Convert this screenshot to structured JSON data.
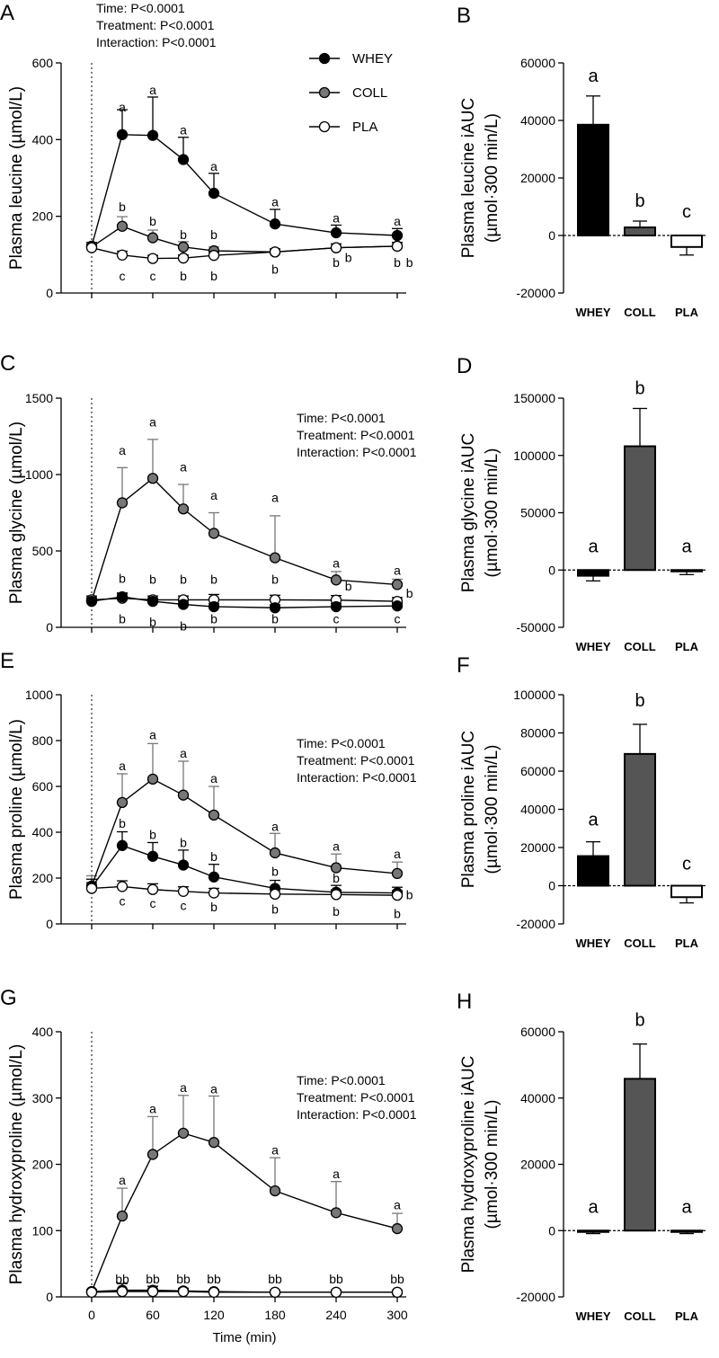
{
  "chart_data": [
    {
      "panel": "A",
      "type": "line",
      "ylabel": "Plasma leucine (µmol/L)",
      "xlabel": "",
      "ylim": [
        0,
        600
      ],
      "yticks": [
        0,
        200,
        400,
        600
      ],
      "xlim": [
        0,
        300
      ],
      "xticks": [
        0,
        60,
        120,
        180,
        240,
        300
      ],
      "show_xtick_labels": false,
      "stats": [
        "Time: P<0.0001",
        "Treatment: P<0.0001",
        "Interaction: P<0.0001"
      ],
      "legend": [
        {
          "name": "WHEY",
          "marker": "filled-black"
        },
        {
          "name": "COLL",
          "marker": "filled-gray"
        },
        {
          "name": "PLA",
          "marker": "open"
        }
      ],
      "x": [
        0,
        30,
        60,
        90,
        120,
        180,
        240,
        300
      ],
      "series": [
        {
          "name": "WHEY",
          "values": [
            122,
            413,
            411,
            348,
            260,
            180,
            157,
            150
          ],
          "err": [
            10,
            65,
            100,
            58,
            52,
            38,
            20,
            18
          ]
        },
        {
          "name": "COLL",
          "values": [
            120,
            174,
            144,
            120,
            110,
            107,
            118,
            122
          ],
          "err": [
            10,
            25,
            20,
            14,
            10,
            8,
            10,
            10
          ]
        },
        {
          "name": "PLA",
          "values": [
            118,
            99,
            90,
            91,
            98,
            107,
            118,
            122
          ],
          "err": [
            10,
            10,
            8,
            8,
            10,
            8,
            10,
            10
          ]
        }
      ],
      "annotations": [
        {
          "x": 30,
          "y": 485,
          "text": "a"
        },
        {
          "x": 60,
          "y": 530,
          "text": "a"
        },
        {
          "x": 90,
          "y": 425,
          "text": "a"
        },
        {
          "x": 120,
          "y": 330,
          "text": "a"
        },
        {
          "x": 180,
          "y": 238,
          "text": "a"
        },
        {
          "x": 240,
          "y": 196,
          "text": "a"
        },
        {
          "x": 300,
          "y": 187,
          "text": "a"
        },
        {
          "x": 30,
          "y": 225,
          "text": "b"
        },
        {
          "x": 60,
          "y": 187,
          "text": "b"
        },
        {
          "x": 90,
          "y": 152,
          "text": "b"
        },
        {
          "x": 120,
          "y": 152,
          "text": "b"
        },
        {
          "x": 30,
          "y": 45,
          "text": "c"
        },
        {
          "x": 60,
          "y": 45,
          "text": "c"
        },
        {
          "x": 90,
          "y": 45,
          "text": "b"
        },
        {
          "x": 120,
          "y": 45,
          "text": "b"
        },
        {
          "x": 180,
          "y": 62,
          "text": "b"
        },
        {
          "x": 240,
          "y": 80,
          "text": "b"
        },
        {
          "x": 252,
          "y": 92,
          "text": "b"
        },
        {
          "x": 300,
          "y": 80,
          "text": "b"
        },
        {
          "x": 312,
          "y": 80,
          "text": "b"
        }
      ]
    },
    {
      "panel": "B",
      "type": "bar",
      "ylabel": "Plasma leucine iAUC (µmol·300 min/L)",
      "ylim": [
        -20000,
        60000
      ],
      "yticks": [
        -20000,
        0,
        20000,
        40000,
        60000
      ],
      "categories": [
        "WHEY",
        "COLL",
        "PLA"
      ],
      "values": [
        38500,
        2800,
        -4000
      ],
      "err": [
        10000,
        2200,
        2800
      ],
      "colors": [
        "#000000",
        "#555555",
        "#ffffff"
      ],
      "letters": [
        "a",
        "b",
        "c"
      ]
    },
    {
      "panel": "C",
      "type": "line",
      "ylabel": "Plasma glycine (µmol/L)",
      "xlabel": "",
      "ylim": [
        0,
        1500
      ],
      "yticks": [
        0,
        500,
        1000,
        1500
      ],
      "xlim": [
        0,
        300
      ],
      "xticks": [
        0,
        60,
        120,
        180,
        240,
        300
      ],
      "show_xtick_labels": false,
      "stats": [
        "Time: P<0.0001",
        "Treatment: P<0.0001",
        "Interaction: P<0.0001"
      ],
      "x": [
        0,
        30,
        60,
        90,
        120,
        180,
        240,
        300
      ],
      "series": [
        {
          "name": "COLL",
          "values": [
            175,
            815,
            975,
            775,
            615,
            455,
            310,
            280
          ],
          "err": [
            20,
            230,
            255,
            160,
            135,
            275,
            55,
            35
          ]
        },
        {
          "name": "PLA",
          "values": [
            180,
            190,
            180,
            180,
            180,
            180,
            178,
            170
          ],
          "err": [
            25,
            30,
            25,
            25,
            35,
            30,
            30,
            25
          ]
        },
        {
          "name": "WHEY",
          "values": [
            170,
            200,
            170,
            150,
            135,
            128,
            135,
            140
          ],
          "err": [
            20,
            25,
            20,
            25,
            20,
            20,
            20,
            15
          ]
        }
      ],
      "annotations": [
        {
          "x": 30,
          "y": 1160,
          "text": "a"
        },
        {
          "x": 60,
          "y": 1345,
          "text": "a"
        },
        {
          "x": 90,
          "y": 1050,
          "text": "a"
        },
        {
          "x": 120,
          "y": 865,
          "text": "a"
        },
        {
          "x": 180,
          "y": 850,
          "text": "a"
        },
        {
          "x": 240,
          "y": 420,
          "text": "a"
        },
        {
          "x": 300,
          "y": 375,
          "text": "a"
        },
        {
          "x": 30,
          "y": 320,
          "text": "b"
        },
        {
          "x": 60,
          "y": 315,
          "text": "b"
        },
        {
          "x": 90,
          "y": 315,
          "text": "b"
        },
        {
          "x": 120,
          "y": 315,
          "text": "b"
        },
        {
          "x": 180,
          "y": 315,
          "text": "b"
        },
        {
          "x": 252,
          "y": 270,
          "text": "b"
        },
        {
          "x": 312,
          "y": 225,
          "text": "b"
        },
        {
          "x": 30,
          "y": 55,
          "text": "b"
        },
        {
          "x": 60,
          "y": 35,
          "text": "b"
        },
        {
          "x": 90,
          "y": 10,
          "text": "b"
        },
        {
          "x": 120,
          "y": 55,
          "text": "b"
        },
        {
          "x": 180,
          "y": 55,
          "text": "b"
        },
        {
          "x": 240,
          "y": 55,
          "text": "c"
        },
        {
          "x": 300,
          "y": 55,
          "text": "c"
        }
      ]
    },
    {
      "panel": "D",
      "type": "bar",
      "ylabel": "Plasma glycine iAUC (µmol·300 min/L)",
      "ylim": [
        -50000,
        150000
      ],
      "yticks": [
        -50000,
        0,
        50000,
        100000,
        150000
      ],
      "categories": [
        "WHEY",
        "COLL",
        "PLA"
      ],
      "values": [
        -5000,
        108000,
        -1000
      ],
      "err": [
        4500,
        33000,
        3000
      ],
      "colors": [
        "#000000",
        "#555555",
        "#ffffff"
      ],
      "letters": [
        "a",
        "b",
        "a"
      ]
    },
    {
      "panel": "E",
      "type": "line",
      "ylabel": "Plasma proline (µmol/L)",
      "xlabel": "",
      "ylim": [
        0,
        1000
      ],
      "yticks": [
        0,
        200,
        400,
        600,
        800,
        1000
      ],
      "xlim": [
        0,
        300
      ],
      "xticks": [
        0,
        60,
        120,
        180,
        240,
        300
      ],
      "show_xtick_labels": false,
      "stats": [
        "Time: P<0.0001",
        "Treatment: P<0.0001",
        "Interaction: P<0.0001"
      ],
      "x": [
        0,
        30,
        60,
        90,
        120,
        180,
        240,
        300
      ],
      "series": [
        {
          "name": "COLL",
          "values": [
            165,
            530,
            632,
            562,
            475,
            310,
            245,
            220
          ],
          "err": [
            45,
            125,
            155,
            148,
            125,
            85,
            60,
            50
          ]
        },
        {
          "name": "WHEY",
          "values": [
            160,
            342,
            295,
            257,
            205,
            155,
            138,
            135
          ],
          "err": [
            35,
            60,
            60,
            65,
            55,
            35,
            30,
            25
          ]
        },
        {
          "name": "PLA",
          "values": [
            155,
            163,
            150,
            142,
            135,
            130,
            128,
            125
          ],
          "err": [
            25,
            25,
            25,
            20,
            20,
            20,
            20,
            20
          ]
        }
      ],
      "annotations": [
        {
          "x": 30,
          "y": 690,
          "text": "a"
        },
        {
          "x": 60,
          "y": 825,
          "text": "a"
        },
        {
          "x": 90,
          "y": 745,
          "text": "a"
        },
        {
          "x": 120,
          "y": 635,
          "text": "a"
        },
        {
          "x": 180,
          "y": 425,
          "text": "a"
        },
        {
          "x": 240,
          "y": 340,
          "text": "a"
        },
        {
          "x": 300,
          "y": 305,
          "text": "a"
        },
        {
          "x": 30,
          "y": 440,
          "text": "b"
        },
        {
          "x": 60,
          "y": 390,
          "text": "b"
        },
        {
          "x": 90,
          "y": 355,
          "text": "b"
        },
        {
          "x": 120,
          "y": 295,
          "text": "b"
        },
        {
          "x": 180,
          "y": 230,
          "text": "b"
        },
        {
          "x": 240,
          "y": 200,
          "text": "b"
        },
        {
          "x": 312,
          "y": 128,
          "text": "b"
        },
        {
          "x": 30,
          "y": 100,
          "text": "c"
        },
        {
          "x": 60,
          "y": 90,
          "text": "c"
        },
        {
          "x": 90,
          "y": 80,
          "text": "c"
        },
        {
          "x": 120,
          "y": 75,
          "text": "b"
        },
        {
          "x": 180,
          "y": 65,
          "text": "b"
        },
        {
          "x": 240,
          "y": 55,
          "text": "b"
        },
        {
          "x": 300,
          "y": 45,
          "text": "b"
        }
      ]
    },
    {
      "panel": "F",
      "type": "bar",
      "ylabel": "Plasma proline iAUC (µmol·300 min/L)",
      "ylim": [
        -20000,
        100000
      ],
      "yticks": [
        -20000,
        0,
        20000,
        40000,
        60000,
        80000,
        100000
      ],
      "categories": [
        "WHEY",
        "COLL",
        "PLA"
      ],
      "values": [
        15500,
        69000,
        -6000
      ],
      "err": [
        7500,
        15500,
        3000
      ],
      "colors": [
        "#000000",
        "#555555",
        "#ffffff"
      ],
      "letters": [
        "a",
        "b",
        "c"
      ]
    },
    {
      "panel": "G",
      "type": "line",
      "ylabel": "Plasma hydroxyproline (µmol/L)",
      "xlabel": "Time (min)",
      "ylim": [
        0,
        400
      ],
      "yticks": [
        0,
        100,
        200,
        300,
        400
      ],
      "xlim": [
        0,
        300
      ],
      "xticks": [
        0,
        60,
        120,
        180,
        240,
        300
      ],
      "show_xtick_labels": true,
      "stats": [
        "Time: P<0.0001",
        "Treatment: P<0.0001",
        "Interaction: P<0.0001"
      ],
      "x": [
        0,
        30,
        60,
        90,
        120,
        180,
        240,
        300
      ],
      "series": [
        {
          "name": "COLL",
          "values": [
            8,
            122,
            215,
            247,
            233,
            160,
            127,
            103
          ],
          "err": [
            3,
            42,
            57,
            57,
            70,
            50,
            47,
            23
          ]
        },
        {
          "name": "WHEY",
          "values": [
            8,
            10,
            10,
            9,
            8,
            7,
            7,
            7
          ],
          "err": [
            3,
            10,
            6,
            4,
            3,
            3,
            3,
            3
          ]
        },
        {
          "name": "PLA",
          "values": [
            7,
            8,
            8,
            8,
            7,
            7,
            7,
            7
          ],
          "err": [
            2,
            3,
            3,
            3,
            3,
            3,
            3,
            3
          ]
        }
      ],
      "annotations": [
        {
          "x": 30,
          "y": 176,
          "text": "a"
        },
        {
          "x": 60,
          "y": 284,
          "text": "a"
        },
        {
          "x": 90,
          "y": 316,
          "text": "a"
        },
        {
          "x": 120,
          "y": 314,
          "text": "a"
        },
        {
          "x": 180,
          "y": 222,
          "text": "a"
        },
        {
          "x": 240,
          "y": 186,
          "text": "a"
        },
        {
          "x": 300,
          "y": 139,
          "text": "a"
        },
        {
          "x": 30,
          "y": 27,
          "text": "bb"
        },
        {
          "x": 60,
          "y": 27,
          "text": "bb"
        },
        {
          "x": 90,
          "y": 27,
          "text": "bb"
        },
        {
          "x": 120,
          "y": 27,
          "text": "bb"
        },
        {
          "x": 180,
          "y": 27,
          "text": "bb"
        },
        {
          "x": 240,
          "y": 27,
          "text": "bb"
        },
        {
          "x": 300,
          "y": 27,
          "text": "bb"
        }
      ]
    },
    {
      "panel": "H",
      "type": "bar",
      "ylabel": "Plasma hydroxyproline iAUC (µmol·300 min/L)",
      "ylim": [
        -20000,
        60000
      ],
      "yticks": [
        -20000,
        0,
        20000,
        40000,
        60000
      ],
      "categories": [
        "WHEY",
        "COLL",
        "PLA"
      ],
      "values": [
        -300,
        45800,
        -300
      ],
      "err": [
        600,
        10500,
        600
      ],
      "colors": [
        "#000000",
        "#555555",
        "#ffffff"
      ],
      "letters": [
        "a",
        "b",
        "a"
      ]
    }
  ]
}
